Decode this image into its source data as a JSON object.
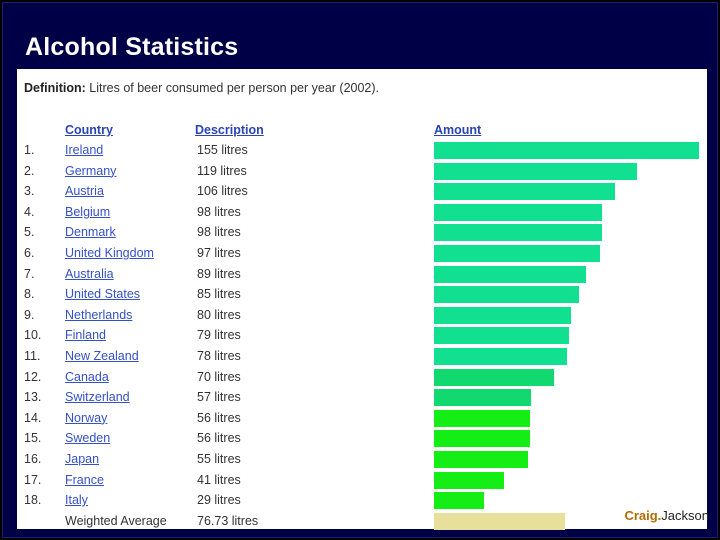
{
  "title": "Alcohol Statistics",
  "definition": {
    "label": "Definition:",
    "text": "Litres of beer consumed per person per year (2002)."
  },
  "headers": {
    "country": "Country",
    "description": "Description",
    "amount": "Amount"
  },
  "chart_data": {
    "type": "bar",
    "orientation": "horizontal",
    "title": "Litres of beer consumed per person per year (2002)",
    "xlabel": "Amount",
    "ylabel": "Country",
    "xlim": [
      0,
      155
    ],
    "rows": [
      {
        "rank": "1.",
        "country": "Ireland",
        "desc": "155 litres",
        "value": 155
      },
      {
        "rank": "2.",
        "country": "Germany",
        "desc": "119 litres",
        "value": 119
      },
      {
        "rank": "3.",
        "country": "Austria",
        "desc": "106 litres",
        "value": 106
      },
      {
        "rank": "4.",
        "country": "Belgium",
        "desc": "98 litres",
        "value": 98
      },
      {
        "rank": "5.",
        "country": "Denmark",
        "desc": "98 litres",
        "value": 98
      },
      {
        "rank": "6.",
        "country": "United Kingdom",
        "desc": "97 litres",
        "value": 97
      },
      {
        "rank": "7.",
        "country": "Australia",
        "desc": "89 litres",
        "value": 89
      },
      {
        "rank": "8.",
        "country": "United States",
        "desc": "85 litres",
        "value": 85
      },
      {
        "rank": "9.",
        "country": "Netherlands",
        "desc": "80 litres",
        "value": 80
      },
      {
        "rank": "10.",
        "country": "Finland",
        "desc": "79 litres",
        "value": 79
      },
      {
        "rank": "11.",
        "country": "New Zealand",
        "desc": "78 litres",
        "value": 78
      },
      {
        "rank": "12.",
        "country": "Canada",
        "desc": "70 litres",
        "value": 70
      },
      {
        "rank": "13.",
        "country": "Switzerland",
        "desc": "57 litres",
        "value": 57
      },
      {
        "rank": "14.",
        "country": "Norway",
        "desc": "56 litres",
        "value": 56
      },
      {
        "rank": "15.",
        "country": "Sweden",
        "desc": "56 litres",
        "value": 56
      },
      {
        "rank": "16.",
        "country": "Japan",
        "desc": "55 litres",
        "value": 55
      },
      {
        "rank": "17.",
        "country": "France",
        "desc": "41 litres",
        "value": 41
      },
      {
        "rank": "18.",
        "country": "Italy",
        "desc": "29 litres",
        "value": 29
      }
    ],
    "average": {
      "label": "Weighted Average",
      "desc": "76.73 litres",
      "value": 76.73
    }
  },
  "credit": {
    "part1": "Craig.",
    "part2": "Jackson"
  },
  "colors": {
    "bar_high": "#10e090",
    "bar_mid": "#12d870",
    "bar_low": "#14ee14",
    "bar_average": "#e8df9a"
  }
}
